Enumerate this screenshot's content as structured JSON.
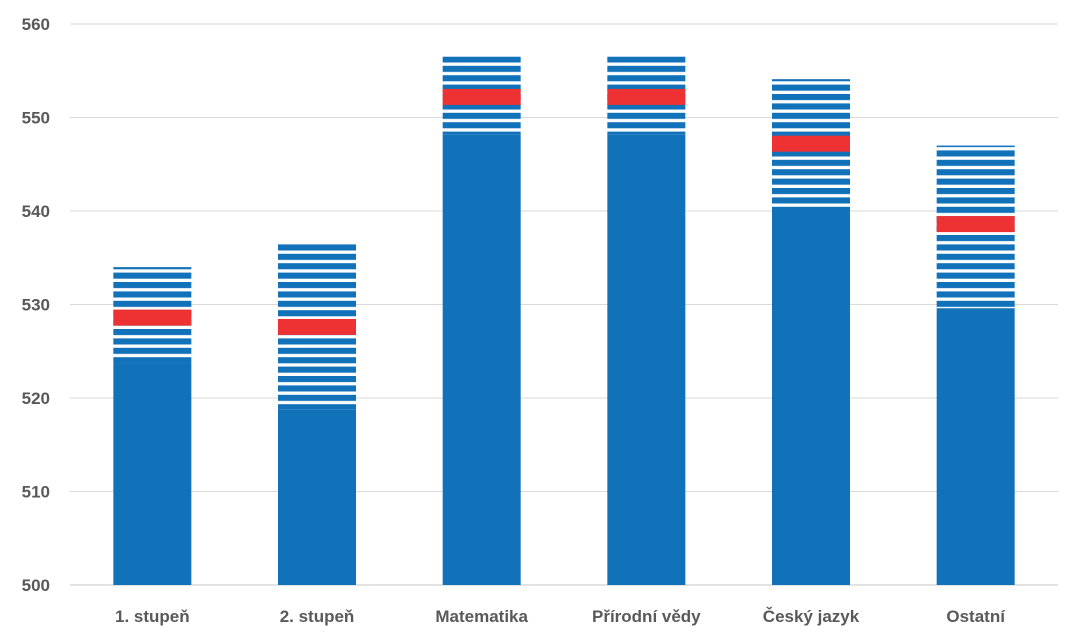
{
  "chart_data": {
    "type": "bar",
    "title": "",
    "xlabel": "",
    "ylabel": "",
    "ylim": [
      500,
      560
    ],
    "yticks": [
      500,
      510,
      520,
      530,
      540,
      550,
      560
    ],
    "grid": true,
    "legend": "none",
    "categories": [
      "1. stupeň",
      "2. stupeň",
      "Matematika",
      "Přírodní vědy",
      "Český jazyk",
      "Ostatní"
    ],
    "series": [
      {
        "values": [
          523.8,
          518.8,
          548.2,
          548.2,
          540.0,
          529.6
        ]
      },
      {
        "values": [
          528.6,
          527.6,
          552.2,
          552.2,
          547.2,
          538.6
        ]
      },
      {
        "values": [
          534.0,
          536.5,
          556.5,
          556.5,
          554.1,
          547.0
        ]
      }
    ],
    "colors": {
      "bar": "#1172BA",
      "marker": "#EE3133",
      "grid": "#D9D9D9",
      "axis_text": "#595959"
    }
  }
}
